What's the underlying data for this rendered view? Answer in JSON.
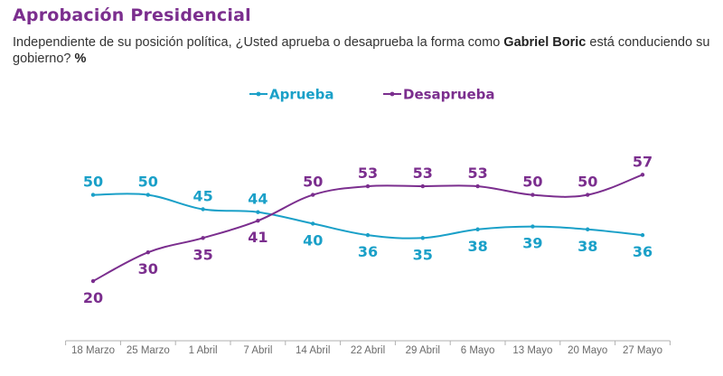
{
  "header": {
    "title": "Aprobación Presidencial",
    "subtitle_pre": "Independiente de su posición política, ¿Usted aprueba o desaprueba la forma como ",
    "subtitle_bold": "Gabriel Boric",
    "subtitle_post": " está conduciendo su gobierno? ",
    "subtitle_unit": "%"
  },
  "colors": {
    "aprueba": "#1aa0c8",
    "desaprueba": "#7b2e8e",
    "axis": "#b0b0b0",
    "tick_text": "#6b6b6b"
  },
  "chart_data": {
    "type": "line",
    "title": "Aprobación Presidencial",
    "categories": [
      "18 Marzo",
      "25 Marzo",
      "1 Abril",
      "7 Abril",
      "14 Abril",
      "22 Abril",
      "29 Abril",
      "6 Mayo",
      "13 Mayo",
      "20 Mayo",
      "27 Mayo"
    ],
    "series": [
      {
        "name": "Aprueba",
        "color": "#1aa0c8",
        "values": [
          50,
          50,
          45,
          44,
          40,
          36,
          35,
          38,
          39,
          38,
          36
        ]
      },
      {
        "name": "Desaprueba",
        "color": "#7b2e8e",
        "values": [
          20,
          30,
          35,
          41,
          50,
          53,
          53,
          53,
          50,
          50,
          57
        ]
      }
    ],
    "unit": "%",
    "legend": "top-center",
    "grid": false,
    "show_y_axis": false
  }
}
